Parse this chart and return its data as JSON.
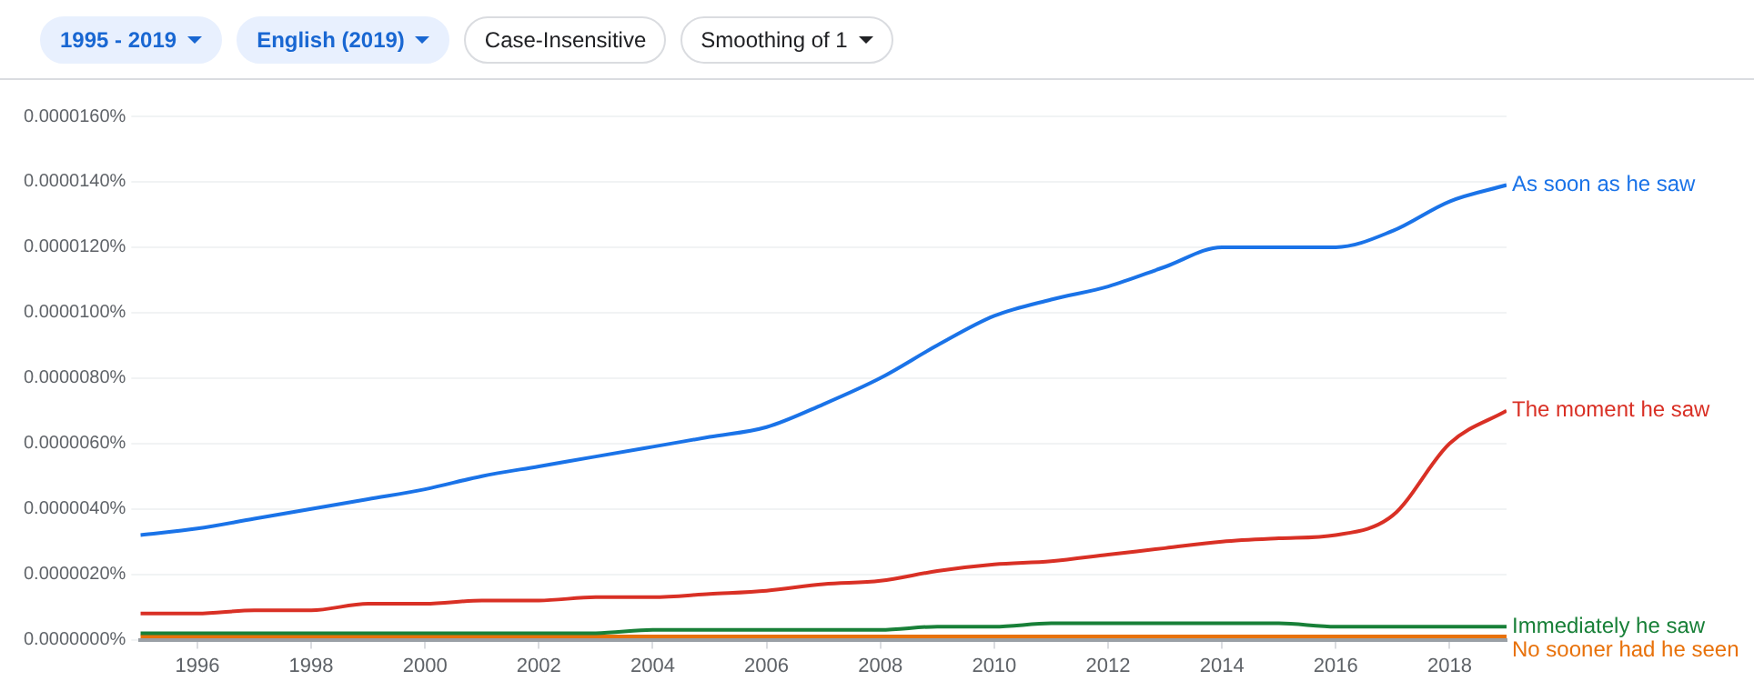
{
  "chart_data": {
    "type": "line",
    "annotations": [
      "1995 - 2019",
      "English (2019)",
      "Case-Insensitive",
      "Smoothing of 1"
    ],
    "x": [
      1995,
      1996,
      1997,
      1998,
      1999,
      2000,
      2001,
      2002,
      2003,
      2004,
      2005,
      2006,
      2007,
      2008,
      2009,
      2010,
      2011,
      2012,
      2013,
      2014,
      2015,
      2016,
      2017,
      2018,
      2019
    ],
    "series": [
      {
        "name": "As soon as he saw",
        "color": "#1a73e8",
        "values": [
          3.2e-06,
          3.4e-06,
          3.7e-06,
          4e-06,
          4.3e-06,
          4.6e-06,
          5e-06,
          5.3e-06,
          5.6e-06,
          5.9e-06,
          6.2e-06,
          6.5e-06,
          7.2e-06,
          8e-06,
          9e-06,
          9.9e-06,
          1.04e-05,
          1.08e-05,
          1.14e-05,
          1.2e-05,
          1.2e-05,
          1.2e-05,
          1.25e-05,
          1.34e-05,
          1.39e-05
        ]
      },
      {
        "name": "The moment he saw",
        "color": "#d93025",
        "values": [
          8e-07,
          8e-07,
          9e-07,
          9e-07,
          1.1e-06,
          1.1e-06,
          1.2e-06,
          1.2e-06,
          1.3e-06,
          1.3e-06,
          1.4e-06,
          1.5e-06,
          1.7e-06,
          1.8e-06,
          2.1e-06,
          2.3e-06,
          2.4e-06,
          2.6e-06,
          2.8e-06,
          3e-06,
          3.1e-06,
          3.2e-06,
          3.8e-06,
          6e-06,
          7e-06
        ]
      },
      {
        "name": "Immediately he saw",
        "color": "#188038",
        "values": [
          2e-07,
          2e-07,
          2e-07,
          2e-07,
          2e-07,
          2e-07,
          2e-07,
          2e-07,
          2e-07,
          3e-07,
          3e-07,
          3e-07,
          3e-07,
          3e-07,
          4e-07,
          4e-07,
          5e-07,
          5e-07,
          5e-07,
          5e-07,
          5e-07,
          4e-07,
          4e-07,
          4e-07,
          4e-07
        ]
      },
      {
        "name": "No sooner had he seen",
        "color": "#e8710a",
        "values": [
          1e-07,
          1e-07,
          1e-07,
          1e-07,
          1e-07,
          1e-07,
          1e-07,
          1e-07,
          1e-07,
          1e-07,
          1e-07,
          1e-07,
          1e-07,
          1e-07,
          1e-07,
          1e-07,
          1e-07,
          1e-07,
          1e-07,
          1e-07,
          1e-07,
          1e-07,
          1e-07,
          1e-07,
          1e-07
        ]
      }
    ],
    "xlim": [
      1995,
      2019
    ],
    "xticks": [
      1996,
      1998,
      2000,
      2002,
      2004,
      2006,
      2008,
      2010,
      2012,
      2014,
      2016,
      2018
    ],
    "ylim": [
      0,
      1.6e-05
    ],
    "yticks": [
      {
        "value": 0,
        "label": "0.0000000%"
      },
      {
        "value": 2e-06,
        "label": "0.0000020%"
      },
      {
        "value": 4e-06,
        "label": "0.0000040%"
      },
      {
        "value": 6e-06,
        "label": "0.0000060%"
      },
      {
        "value": 8e-06,
        "label": "0.0000080%"
      },
      {
        "value": 1e-05,
        "label": "0.0000100%"
      },
      {
        "value": 1.2e-05,
        "label": "0.0000120%"
      },
      {
        "value": 1.4e-05,
        "label": "0.0000140%"
      },
      {
        "value": 1.6e-05,
        "label": "0.0000160%"
      }
    ],
    "grid": "y",
    "legend": false,
    "marker": "none",
    "line_style": "solid"
  }
}
